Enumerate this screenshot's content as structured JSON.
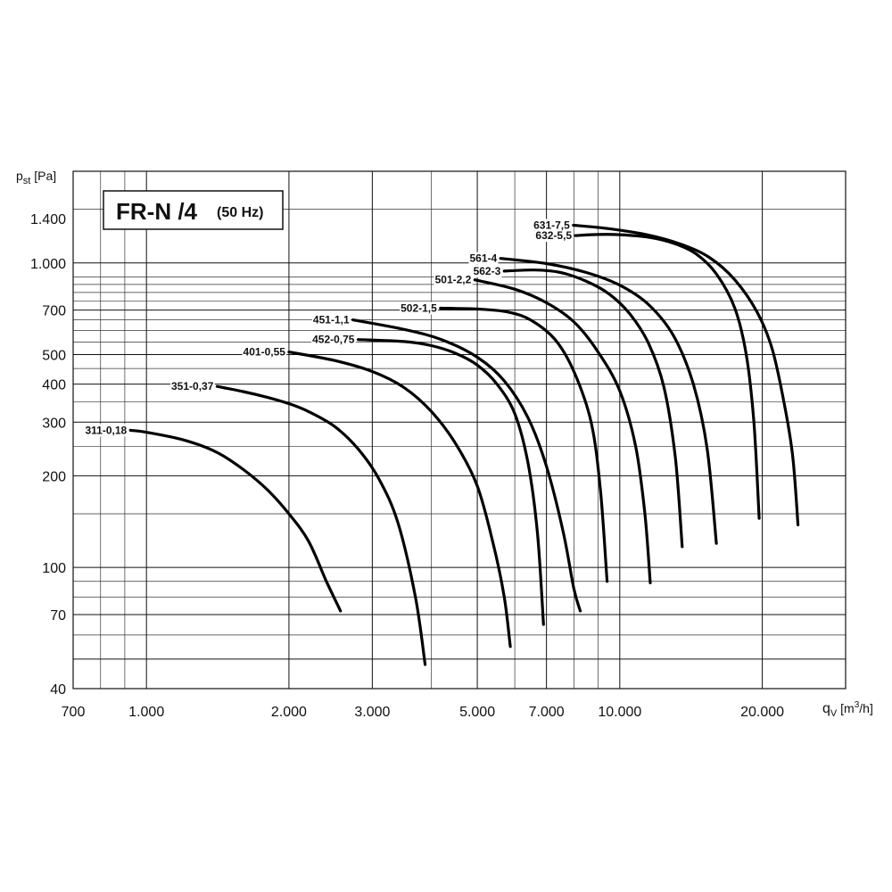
{
  "chart_data": {
    "type": "line",
    "title": "FR-N /4",
    "subtitle": "(50 Hz)",
    "ylabel": {
      "main": "p",
      "sub": "st",
      "unit": " [Pa]"
    },
    "xlabel": {
      "main": "q",
      "sub": "V",
      "unit_pre": " [m",
      "unit_sup": "3",
      "unit_post": "/h]"
    },
    "x_scale": "log",
    "y_scale": "log",
    "xlim": [
      700,
      30000
    ],
    "ylim": [
      40,
      2000
    ],
    "grid": true,
    "x_ticks": [
      {
        "value": 700,
        "label": "700"
      },
      {
        "value": 1000,
        "label": "1.000"
      },
      {
        "value": 2000,
        "label": "2.000"
      },
      {
        "value": 3000,
        "label": "3.000"
      },
      {
        "value": 5000,
        "label": "5.000"
      },
      {
        "value": 7000,
        "label": "7.000"
      },
      {
        "value": 10000,
        "label": "10.000"
      },
      {
        "value": 20000,
        "label": "20.000"
      }
    ],
    "y_ticks": [
      {
        "value": 40,
        "label": "40"
      },
      {
        "value": 70,
        "label": "70"
      },
      {
        "value": 100,
        "label": "100"
      },
      {
        "value": 200,
        "label": "200"
      },
      {
        "value": 300,
        "label": "300"
      },
      {
        "value": 400,
        "label": "400"
      },
      {
        "value": 500,
        "label": "500"
      },
      {
        "value": 700,
        "label": "700"
      },
      {
        "value": 1000,
        "label": "1.000"
      },
      {
        "value": 1400,
        "label": "1.400"
      }
    ],
    "series": [
      {
        "name": "311-0,18",
        "points": [
          [
            925,
            282
          ],
          [
            1000,
            278
          ],
          [
            1200,
            262
          ],
          [
            1400,
            240
          ],
          [
            1600,
            210
          ],
          [
            1800,
            180
          ],
          [
            2000,
            150
          ],
          [
            2200,
            122
          ],
          [
            2400,
            90
          ],
          [
            2570,
            72
          ]
        ]
      },
      {
        "name": "351-0,37",
        "points": [
          [
            1410,
            393
          ],
          [
            1600,
            378
          ],
          [
            1800,
            362
          ],
          [
            2000,
            345
          ],
          [
            2200,
            325
          ],
          [
            2500,
            290
          ],
          [
            2800,
            245
          ],
          [
            3100,
            195
          ],
          [
            3400,
            140
          ],
          [
            3700,
            80
          ],
          [
            3880,
            48
          ]
        ]
      },
      {
        "name": "401-0,55",
        "points": [
          [
            2000,
            510
          ],
          [
            2500,
            478
          ],
          [
            3000,
            440
          ],
          [
            3500,
            390
          ],
          [
            4000,
            325
          ],
          [
            4500,
            255
          ],
          [
            5000,
            185
          ],
          [
            5400,
            120
          ],
          [
            5700,
            80
          ],
          [
            5870,
            55
          ]
        ]
      },
      {
        "name": "452-0,75",
        "points": [
          [
            2800,
            560
          ],
          [
            3500,
            552
          ],
          [
            4000,
            535
          ],
          [
            4500,
            505
          ],
          [
            5000,
            462
          ],
          [
            5500,
            400
          ],
          [
            6000,
            320
          ],
          [
            6400,
            220
          ],
          [
            6700,
            130
          ],
          [
            6900,
            65
          ]
        ]
      },
      {
        "name": "451-1,1",
        "points": [
          [
            2730,
            650
          ],
          [
            3500,
            605
          ],
          [
            4200,
            560
          ],
          [
            5000,
            490
          ],
          [
            5700,
            410
          ],
          [
            6400,
            310
          ],
          [
            7000,
            215
          ],
          [
            7600,
            130
          ],
          [
            8000,
            85
          ],
          [
            8250,
            72
          ]
        ]
      },
      {
        "name": "502-1,5",
        "points": [
          [
            4180,
            710
          ],
          [
            5000,
            706
          ],
          [
            5800,
            690
          ],
          [
            6500,
            648
          ],
          [
            7300,
            560
          ],
          [
            8000,
            440
          ],
          [
            8700,
            300
          ],
          [
            9100,
            180
          ],
          [
            9400,
            90
          ]
        ]
      },
      {
        "name": "501-2,2",
        "points": [
          [
            4940,
            880
          ],
          [
            6000,
            820
          ],
          [
            7000,
            740
          ],
          [
            8000,
            640
          ],
          [
            9000,
            510
          ],
          [
            10000,
            380
          ],
          [
            10800,
            250
          ],
          [
            11300,
            150
          ],
          [
            11600,
            89
          ]
        ]
      },
      {
        "name": "562-3",
        "points": [
          [
            5700,
            940
          ],
          [
            6600,
            948
          ],
          [
            7500,
            930
          ],
          [
            8500,
            870
          ],
          [
            9500,
            790
          ],
          [
            10500,
            680
          ],
          [
            11500,
            545
          ],
          [
            12400,
            390
          ],
          [
            13100,
            230
          ],
          [
            13550,
            117
          ]
        ]
      },
      {
        "name": "561-4",
        "points": [
          [
            5600,
            1035
          ],
          [
            7000,
            995
          ],
          [
            8500,
            930
          ],
          [
            10000,
            845
          ],
          [
            11500,
            730
          ],
          [
            13000,
            575
          ],
          [
            14300,
            400
          ],
          [
            15300,
            245
          ],
          [
            16000,
            120
          ]
        ]
      },
      {
        "name": "632-5,5",
        "points": [
          [
            8060,
            1230
          ],
          [
            9000,
            1240
          ],
          [
            10000,
            1238
          ],
          [
            11500,
            1215
          ],
          [
            13000,
            1160
          ],
          [
            14500,
            1070
          ],
          [
            16000,
            920
          ],
          [
            17500,
            710
          ],
          [
            18500,
            500
          ],
          [
            19200,
            300
          ],
          [
            19700,
            145
          ]
        ]
      },
      {
        "name": "631-7,5",
        "points": [
          [
            7980,
            1330
          ],
          [
            9500,
            1295
          ],
          [
            11500,
            1235
          ],
          [
            13500,
            1150
          ],
          [
            15500,
            1040
          ],
          [
            17500,
            880
          ],
          [
            19500,
            690
          ],
          [
            21000,
            520
          ],
          [
            22300,
            340
          ],
          [
            23200,
            230
          ],
          [
            23800,
            138
          ]
        ]
      }
    ]
  }
}
